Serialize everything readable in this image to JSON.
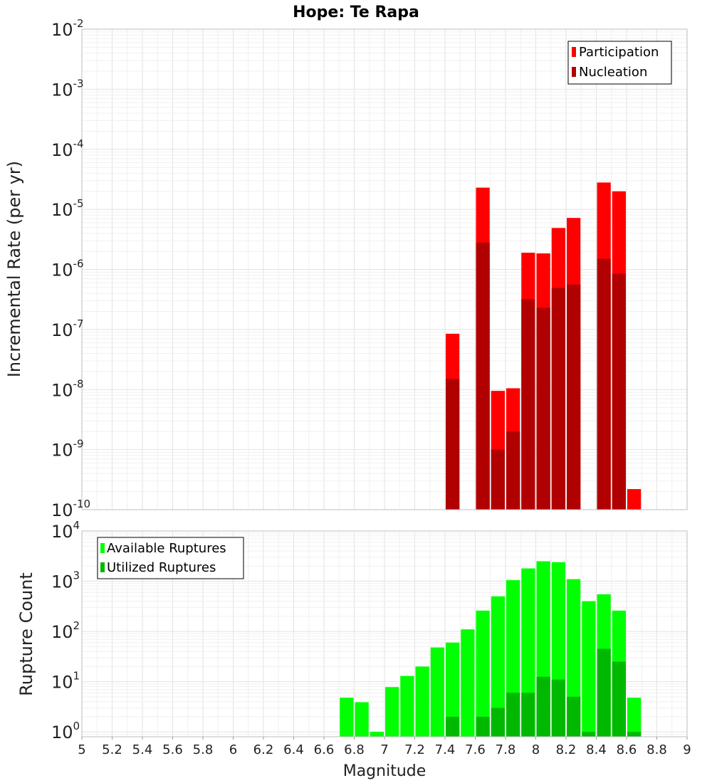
{
  "chart_data": [
    {
      "type": "bar",
      "title": "Hope: Te Rapa",
      "xlabel": "",
      "ylabel": "Incremental Rate (per yr)",
      "yscale": "log",
      "ylim": [
        1e-10,
        0.01
      ],
      "xlim": [
        5,
        9
      ],
      "grid": true,
      "legend_position": "top-right",
      "ytick_exponents": [
        "-10",
        "-9",
        "-8",
        "-7",
        "-6",
        "-5",
        "-4",
        "-3",
        "-2"
      ],
      "series": [
        {
          "name": "Participation",
          "color": "#ff0000",
          "points": [
            {
              "x": 7.45,
              "y": 8.5e-08
            },
            {
              "x": 7.65,
              "y": 2.3e-05
            },
            {
              "x": 7.75,
              "y": 9.5e-09
            },
            {
              "x": 7.85,
              "y": 1.05e-08
            },
            {
              "x": 7.95,
              "y": 1.9e-06
            },
            {
              "x": 8.05,
              "y": 1.85e-06
            },
            {
              "x": 8.15,
              "y": 4.9e-06
            },
            {
              "x": 8.25,
              "y": 7.2e-06
            },
            {
              "x": 8.45,
              "y": 2.8e-05
            },
            {
              "x": 8.55,
              "y": 2e-05
            },
            {
              "x": 8.65,
              "y": 2.2e-10
            }
          ]
        },
        {
          "name": "Nucleation",
          "color": "#b00000",
          "points": [
            {
              "x": 7.45,
              "y": 1.5e-08
            },
            {
              "x": 7.65,
              "y": 2.8e-06
            },
            {
              "x": 7.75,
              "y": 1e-09
            },
            {
              "x": 7.85,
              "y": 2e-09
            },
            {
              "x": 7.95,
              "y": 3.2e-07
            },
            {
              "x": 8.05,
              "y": 2.3e-07
            },
            {
              "x": 8.15,
              "y": 4.9e-07
            },
            {
              "x": 8.25,
              "y": 5.6e-07
            },
            {
              "x": 8.45,
              "y": 1.5e-06
            },
            {
              "x": 8.55,
              "y": 8.5e-07
            }
          ]
        }
      ]
    },
    {
      "type": "bar",
      "title": "",
      "xlabel": "Magnitude",
      "ylabel": "Rupture Count",
      "yscale": "log",
      "ylim": [
        0.8,
        10000.0
      ],
      "xlim": [
        5,
        9
      ],
      "grid": true,
      "legend_position": "top-left",
      "ytick_exponents": [
        "0",
        "1",
        "2",
        "3",
        "4"
      ],
      "xticks": [
        "5",
        "5.2",
        "5.4",
        "5.6",
        "5.8",
        "6",
        "6.2",
        "6.4",
        "6.6",
        "6.8",
        "7",
        "7.2",
        "7.4",
        "7.6",
        "7.8",
        "8",
        "8.2",
        "8.4",
        "8.6",
        "8.8",
        "9"
      ],
      "series": [
        {
          "name": "Available Ruptures",
          "color": "#00ff00",
          "points": [
            {
              "x": 6.75,
              "y": 4.8
            },
            {
              "x": 6.85,
              "y": 3.9
            },
            {
              "x": 6.95,
              "y": 1.0
            },
            {
              "x": 7.05,
              "y": 7.8
            },
            {
              "x": 7.15,
              "y": 13
            },
            {
              "x": 7.25,
              "y": 20
            },
            {
              "x": 7.35,
              "y": 48
            },
            {
              "x": 7.45,
              "y": 60
            },
            {
              "x": 7.55,
              "y": 110
            },
            {
              "x": 7.65,
              "y": 260
            },
            {
              "x": 7.75,
              "y": 500
            },
            {
              "x": 7.85,
              "y": 1050
            },
            {
              "x": 7.95,
              "y": 1800
            },
            {
              "x": 8.05,
              "y": 2500
            },
            {
              "x": 8.15,
              "y": 2400
            },
            {
              "x": 8.25,
              "y": 1100
            },
            {
              "x": 8.35,
              "y": 400
            },
            {
              "x": 8.45,
              "y": 550
            },
            {
              "x": 8.55,
              "y": 260
            },
            {
              "x": 8.65,
              "y": 4.8
            }
          ]
        },
        {
          "name": "Utilized Ruptures",
          "color": "#00b800",
          "points": [
            {
              "x": 7.45,
              "y": 2.0
            },
            {
              "x": 7.65,
              "y": 2.0
            },
            {
              "x": 7.75,
              "y": 3.0
            },
            {
              "x": 7.85,
              "y": 6.0
            },
            {
              "x": 7.95,
              "y": 6.0
            },
            {
              "x": 8.05,
              "y": 12.5
            },
            {
              "x": 8.15,
              "y": 11
            },
            {
              "x": 8.25,
              "y": 5.0
            },
            {
              "x": 8.35,
              "y": 1.0
            },
            {
              "x": 8.45,
              "y": 45
            },
            {
              "x": 8.55,
              "y": 25
            },
            {
              "x": 8.65,
              "y": 1.0
            }
          ]
        }
      ]
    }
  ]
}
